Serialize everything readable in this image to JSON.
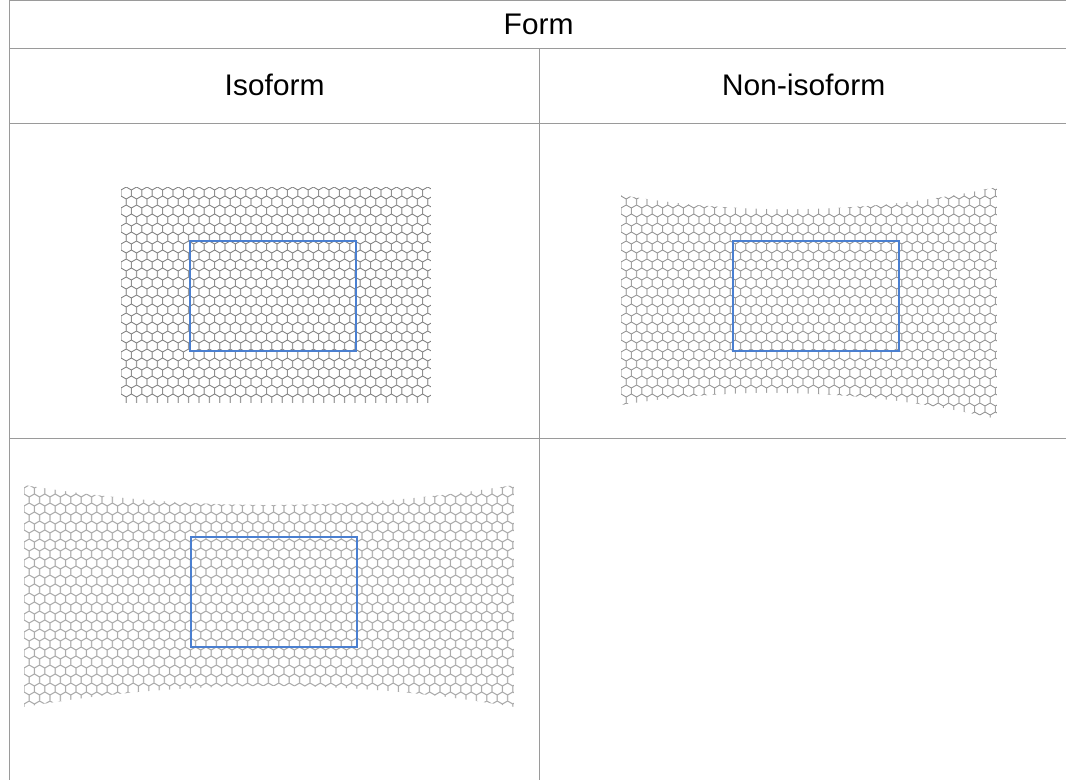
{
  "table": {
    "header": "Form",
    "columns": [
      "Isoform",
      "Non-isoform"
    ]
  },
  "figures": {
    "isoform": {
      "lattice": "honeycomb-lattice",
      "highlight_color": "#4a7fd0"
    },
    "non_isoform": {
      "lattice": "honeycomb-lattice-pinched",
      "highlight_color": "#4a7fd0"
    },
    "strained": {
      "lattice": "honeycomb-lattice-pinched-dense",
      "highlight_color": "#4a7fd0"
    }
  }
}
